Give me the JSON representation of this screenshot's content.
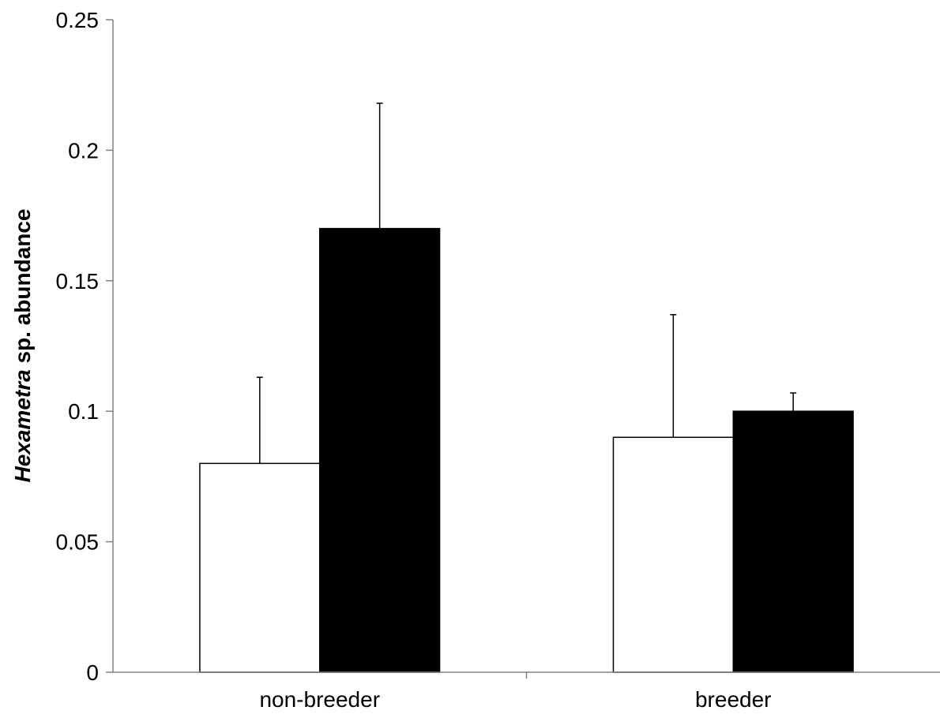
{
  "chart_data": {
    "type": "bar",
    "categories": [
      "non-breeder",
      "breeder"
    ],
    "series": [
      {
        "values": [
          0.08,
          0.09
        ],
        "errors": [
          0.033,
          0.047
        ],
        "fill": "#ffffff"
      },
      {
        "values": [
          0.17,
          0.1
        ],
        "errors": [
          0.048,
          0.007
        ],
        "fill": "#000000"
      }
    ],
    "ylabel_italic": "Hexametra",
    "ylabel_rest": " sp. abundance",
    "xlabel": "",
    "ylim": [
      0,
      0.25
    ],
    "yticks": [
      0,
      0.05,
      0.1,
      0.15,
      0.2,
      0.25
    ],
    "ytick_labels": [
      "0",
      "0.05",
      "0.1",
      "0.15",
      "0.2",
      "0.25"
    ],
    "grid": false,
    "legend": "none"
  }
}
